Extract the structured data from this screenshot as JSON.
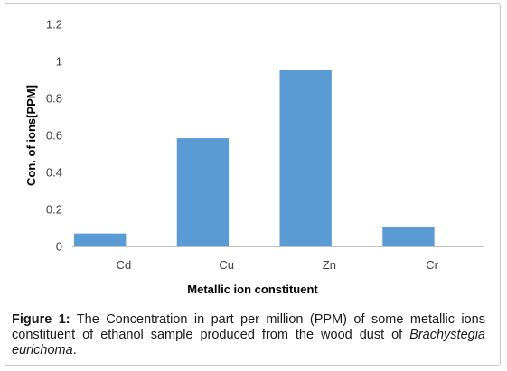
{
  "chart_data": {
    "type": "bar",
    "categories": [
      "Cd",
      "Cu",
      "Zn",
      "Cr"
    ],
    "values": [
      0.07,
      0.585,
      0.955,
      0.105
    ],
    "xlabel": "Metallic ion constituent",
    "ylabel": "Con. of ions[PPM]",
    "ylim": [
      0,
      1.2
    ],
    "yticks": [
      "0",
      "0.2",
      "0.4",
      "0.6",
      "0.8",
      "1",
      "1.2"
    ],
    "grid": false,
    "legend": "none",
    "bar_color": "#5b9bd5"
  },
  "caption": {
    "label": "Figure 1:",
    "text": " The Concentration in part per million (PPM) of some metallic ions constituent of ethanol sample produced from the wood dust of ",
    "italic": "Brachystegia eurichoma",
    "end": "."
  }
}
